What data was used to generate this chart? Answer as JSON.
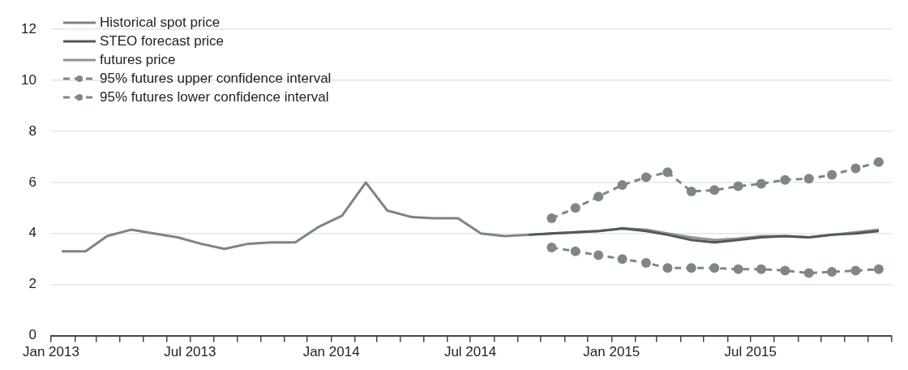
{
  "chart_data": {
    "type": "line",
    "xlim": [
      "2013-01",
      "2016-01"
    ],
    "xticks": [
      {
        "value": "2013-01",
        "label": "Jan 2013"
      },
      {
        "value": "2013-02",
        "label": null
      },
      {
        "value": "2013-03",
        "label": null
      },
      {
        "value": "2013-04",
        "label": null
      },
      {
        "value": "2013-05",
        "label": null
      },
      {
        "value": "2013-06",
        "label": null
      },
      {
        "value": "2013-07",
        "label": "Jul 2013"
      },
      {
        "value": "2013-08",
        "label": null
      },
      {
        "value": "2013-09",
        "label": null
      },
      {
        "value": "2013-10",
        "label": null
      },
      {
        "value": "2013-11",
        "label": null
      },
      {
        "value": "2013-12",
        "label": null
      },
      {
        "value": "2014-01",
        "label": "Jan 2014"
      },
      {
        "value": "2014-02",
        "label": null
      },
      {
        "value": "2014-03",
        "label": null
      },
      {
        "value": "2014-04",
        "label": null
      },
      {
        "value": "2014-05",
        "label": null
      },
      {
        "value": "2014-06",
        "label": null
      },
      {
        "value": "2014-07",
        "label": "Jul 2014"
      },
      {
        "value": "2014-08",
        "label": null
      },
      {
        "value": "2014-09",
        "label": null
      },
      {
        "value": "2014-10",
        "label": null
      },
      {
        "value": "2014-11",
        "label": null
      },
      {
        "value": "2014-12",
        "label": null
      },
      {
        "value": "2015-01",
        "label": "Jan 2015"
      },
      {
        "value": "2015-02",
        "label": null
      },
      {
        "value": "2015-03",
        "label": null
      },
      {
        "value": "2015-04",
        "label": null
      },
      {
        "value": "2015-05",
        "label": null
      },
      {
        "value": "2015-06",
        "label": null
      },
      {
        "value": "2015-07",
        "label": "Jul 2015"
      },
      {
        "value": "2015-08",
        "label": null
      },
      {
        "value": "2015-09",
        "label": null
      },
      {
        "value": "2015-10",
        "label": null
      },
      {
        "value": "2015-11",
        "label": null
      },
      {
        "value": "2015-12",
        "label": null
      },
      {
        "value": "2016-01",
        "label": null
      }
    ],
    "ylim": [
      0,
      12
    ],
    "yticks": [
      0,
      2,
      4,
      6,
      8,
      10,
      12
    ],
    "grid": "y",
    "legend": "top left",
    "series": [
      {
        "name": "Historical spot price",
        "color": "#7a8585",
        "marker": "none",
        "line_style": "solid",
        "x": [
          "2013-01-15",
          "2013-02-15",
          "2013-03-15",
          "2013-04-15",
          "2013-05-15",
          "2013-06-15",
          "2013-07-15",
          "2013-08-15",
          "2013-09-15",
          "2013-10-15",
          "2013-11-15",
          "2013-12-15",
          "2014-01-15",
          "2014-02-15",
          "2014-03-15",
          "2014-04-15",
          "2014-05-15",
          "2014-06-15",
          "2014-07-15",
          "2014-08-15",
          "2014-09-15"
        ],
        "values": [
          3.3,
          3.3,
          3.9,
          4.15,
          4.0,
          3.85,
          3.6,
          3.4,
          3.6,
          3.65,
          3.65,
          4.25,
          4.7,
          6.0,
          4.9,
          4.65,
          4.6,
          4.6,
          4.0,
          3.9,
          3.95
        ]
      },
      {
        "name": "STEO forecast price",
        "color": "#4f5a5a",
        "marker": "none",
        "line_style": "solid",
        "x": [
          "2014-09-15",
          "2014-10-15",
          "2014-11-15",
          "2014-12-15",
          "2015-01-15",
          "2015-02-15",
          "2015-03-15",
          "2015-04-15",
          "2015-05-15",
          "2015-06-15",
          "2015-07-15",
          "2015-08-15",
          "2015-09-15",
          "2015-10-15",
          "2015-11-15",
          "2015-12-15"
        ],
        "values": [
          3.95,
          4.0,
          4.05,
          4.1,
          4.2,
          4.1,
          3.95,
          3.75,
          3.65,
          3.75,
          3.85,
          3.9,
          3.85,
          3.95,
          4.0,
          4.1
        ]
      },
      {
        "name": "futures price",
        "color": "#8c9696",
        "marker": "none",
        "line_style": "solid",
        "x": [
          "2014-09-15",
          "2014-10-15",
          "2014-11-15",
          "2014-12-15",
          "2015-01-15",
          "2015-02-15",
          "2015-03-15",
          "2015-04-15",
          "2015-05-15",
          "2015-06-15",
          "2015-07-15",
          "2015-08-15",
          "2015-09-15",
          "2015-10-15",
          "2015-11-15",
          "2015-12-15"
        ],
        "values": [
          3.95,
          4.0,
          4.05,
          4.1,
          4.2,
          4.15,
          4.0,
          3.85,
          3.75,
          3.8,
          3.9,
          3.9,
          3.85,
          3.95,
          4.05,
          4.15
        ]
      },
      {
        "name": "95% futures upper confidence interval",
        "color": "#7d8787",
        "marker": "circle",
        "line_style": "dashed",
        "x": [
          "2014-10-15",
          "2014-11-15",
          "2014-12-15",
          "2015-01-15",
          "2015-02-15",
          "2015-03-15",
          "2015-04-15",
          "2015-05-15",
          "2015-06-15",
          "2015-07-15",
          "2015-08-15",
          "2015-09-15",
          "2015-10-15",
          "2015-11-15",
          "2015-12-15"
        ],
        "values": [
          4.6,
          5.0,
          5.45,
          5.9,
          6.2,
          6.4,
          5.65,
          5.7,
          5.85,
          5.95,
          6.1,
          6.15,
          6.3,
          6.55,
          6.8
        ]
      },
      {
        "name": "95% futures lower confidence interval",
        "color": "#7d8787",
        "marker": "circle",
        "line_style": "dashed",
        "x": [
          "2014-10-15",
          "2014-11-15",
          "2014-12-15",
          "2015-01-15",
          "2015-02-15",
          "2015-03-15",
          "2015-04-15",
          "2015-05-15",
          "2015-06-15",
          "2015-07-15",
          "2015-08-15",
          "2015-09-15",
          "2015-10-15",
          "2015-11-15",
          "2015-12-15"
        ],
        "values": [
          3.45,
          3.3,
          3.15,
          3.0,
          2.85,
          2.65,
          2.65,
          2.65,
          2.6,
          2.6,
          2.55,
          2.45,
          2.5,
          2.55,
          2.6
        ]
      }
    ]
  }
}
